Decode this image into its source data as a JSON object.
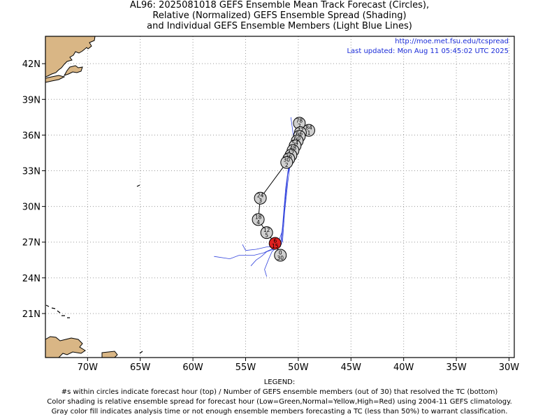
{
  "title": {
    "line1": "AL96: 2025081018 GEFS Ensemble Mean Track Forecast (Circles),",
    "line2": "Relative (Normalized) GEFS Ensemble Spread (Shading)",
    "line3": "and Individual GEFS Ensemble Members (Light Blue Lines)"
  },
  "source_url": "http://moe.met.fsu.edu/tcspread",
  "last_updated": "Last updated: Mon Aug 11 05:45:02 UTC 2025",
  "legend": {
    "heading": "LEGEND:",
    "line1": "#s within circles indicate forecast hour (top) / Number of GEFS ensemble members (out of 30) that resolved the TC (bottom)",
    "line2": "Color shading is relative ensemble spread for forecast hour (Low=Green,Normal=Yellow,High=Red) using 2004-11 GEFS climatology.",
    "line3": "Gray color fill indicates analysis time or not enough ensemble members forecasting a TC (less than 50%) to warrant classification."
  },
  "map": {
    "lon_range": [
      -74,
      -29.5
    ],
    "lat_range": [
      17.3,
      44.3
    ],
    "lon_ticks": [
      -70,
      -65,
      -60,
      -55,
      -50,
      -45,
      -40,
      -35,
      -30
    ],
    "lon_tick_labels": [
      "70W",
      "65W",
      "60W",
      "55W",
      "50W",
      "45W",
      "40W",
      "35W",
      "30W"
    ],
    "lat_ticks": [
      21,
      24,
      27,
      30,
      33,
      36,
      39,
      42
    ],
    "lat_tick_labels": [
      "21N",
      "24N",
      "27N",
      "30N",
      "33N",
      "36N",
      "39N",
      "42N"
    ],
    "grid": "dotted",
    "colors": {
      "land": "#d9b685",
      "gray_fill": "#cfcfcf",
      "high_spread": "#e02020",
      "member_lines": "#3344dd"
    },
    "track": [
      {
        "hour": "0",
        "members": "30",
        "lon": -51.7,
        "lat": 25.9,
        "color": "gray"
      },
      {
        "hour": "6",
        "members": "15",
        "lon": -52.2,
        "lat": 26.9,
        "color": "red"
      },
      {
        "hour": "12",
        "members": "5",
        "lon": -53.0,
        "lat": 27.8,
        "color": "gray"
      },
      {
        "hour": "18",
        "members": "4",
        "lon": -53.8,
        "lat": 28.9,
        "color": "gray"
      },
      {
        "hour": "24",
        "members": "3",
        "lon": -53.6,
        "lat": 30.7,
        "color": "gray"
      },
      {
        "hour": "30",
        "members": "2",
        "lon": -51.1,
        "lat": 33.7,
        "color": "gray"
      },
      {
        "hour": "36",
        "members": "2",
        "lon": -50.9,
        "lat": 34.0,
        "color": "gray"
      },
      {
        "hour": "42",
        "members": "2",
        "lon": -50.7,
        "lat": 34.3,
        "color": "gray"
      },
      {
        "hour": "48",
        "members": "2",
        "lon": -50.5,
        "lat": 34.7,
        "color": "gray"
      },
      {
        "hour": "54",
        "members": "2",
        "lon": -50.3,
        "lat": 35.1,
        "color": "gray"
      },
      {
        "hour": "60",
        "members": "2",
        "lon": -50.1,
        "lat": 35.5,
        "color": "gray"
      },
      {
        "hour": "66",
        "members": "2",
        "lon": -49.9,
        "lat": 35.9,
        "color": "gray"
      },
      {
        "hour": "72",
        "members": "2",
        "lon": -49.8,
        "lat": 36.2,
        "color": "gray"
      },
      {
        "hour": "84",
        "members": "1",
        "lon": -49.0,
        "lat": 36.4,
        "color": "gray"
      },
      {
        "hour": "78",
        "members": "2",
        "lon": -49.9,
        "lat": 37.0,
        "color": "gray"
      }
    ],
    "members": [
      [
        [
          -51.5,
          27.0
        ],
        [
          -51.3,
          29.5
        ],
        [
          -51.0,
          32.0
        ],
        [
          -50.7,
          34.0
        ],
        [
          -50.3,
          35.6
        ],
        [
          -50.0,
          36.6
        ],
        [
          -49.8,
          37.3
        ]
      ],
      [
        [
          -51.6,
          26.8
        ],
        [
          -51.4,
          29.0
        ],
        [
          -51.2,
          31.0
        ],
        [
          -51.0,
          32.8
        ],
        [
          -50.6,
          34.3
        ],
        [
          -50.4,
          35.5
        ],
        [
          -50.7,
          37.5
        ]
      ],
      [
        [
          -51.7,
          26.6
        ],
        [
          -51.5,
          28.3
        ],
        [
          -51.2,
          31.5
        ],
        [
          -50.9,
          33.5
        ]
      ],
      [
        [
          -52.0,
          26.7
        ],
        [
          -51.5,
          28.0
        ],
        [
          -51.0,
          32.7
        ],
        [
          -50.6,
          34.0
        ],
        [
          -50.3,
          35.0
        ]
      ],
      [
        [
          -52.3,
          26.5
        ],
        [
          -53.3,
          26.1
        ],
        [
          -54.2,
          25.9
        ],
        [
          -55.6,
          25.9
        ],
        [
          -56.5,
          25.6
        ],
        [
          -58.0,
          25.8
        ]
      ],
      [
        [
          -52.0,
          26.6
        ],
        [
          -52.5,
          26.2
        ],
        [
          -52.8,
          25.6
        ],
        [
          -53.2,
          24.7
        ],
        [
          -53.0,
          24.1
        ]
      ],
      [
        [
          -52.0,
          26.5
        ],
        [
          -53.0,
          26.2
        ],
        [
          -53.5,
          25.8
        ],
        [
          -54.0,
          25.5
        ],
        [
          -54.5,
          25.0
        ]
      ],
      [
        [
          -52.0,
          26.6
        ],
        [
          -53.0,
          26.6
        ],
        [
          -54.0,
          26.4
        ],
        [
          -55.0,
          26.3
        ],
        [
          -55.3,
          26.8
        ]
      ]
    ]
  }
}
